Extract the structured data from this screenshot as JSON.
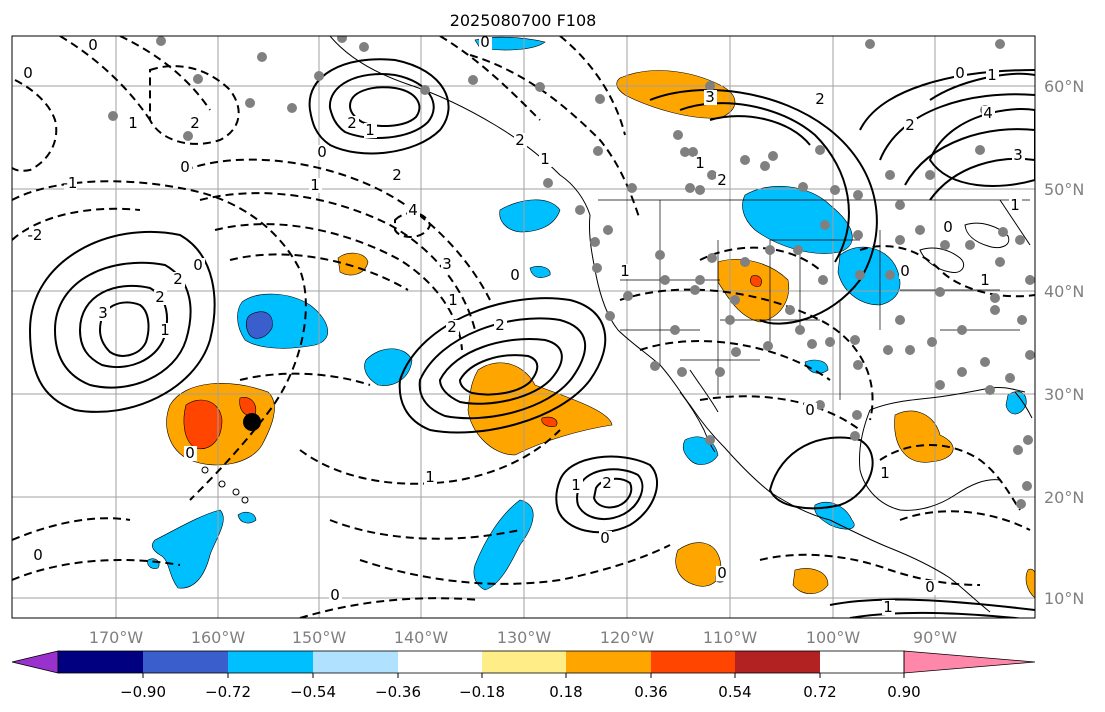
{
  "title": "2025080700 F108",
  "lon_labels": [
    "170°W",
    "160°W",
    "150°W",
    "140°W",
    "130°W",
    "120°W",
    "110°W",
    "100°W",
    "90°W"
  ],
  "lat_labels": [
    "60°N",
    "50°N",
    "40°N",
    "30°N",
    "20°N",
    "10°N"
  ],
  "colorbar": {
    "tick_labels": [
      "−0.90",
      "−0.72",
      "−0.54",
      "−0.36",
      "−0.18",
      "0.18",
      "0.36",
      "0.54",
      "0.72",
      "0.90"
    ],
    "colors": [
      "#9932cc",
      "#000080",
      "#3a5fcd",
      "#00bfff",
      "#b0e2ff",
      "#ffffff",
      "#ffee88",
      "#ffa500",
      "#ff4500",
      "#b22222",
      "#ff88aa"
    ]
  },
  "contour_labels": [
    "0",
    "1",
    "2",
    "3",
    "4",
    "-1",
    "-2",
    "-3",
    "-4"
  ],
  "fill_colors": {
    "orange": "#ffa500",
    "red": "#ff4500",
    "cyan": "#00bfff",
    "blue": "#3a5fcd"
  },
  "marker_color": "#000000",
  "station_color": "#808080"
}
